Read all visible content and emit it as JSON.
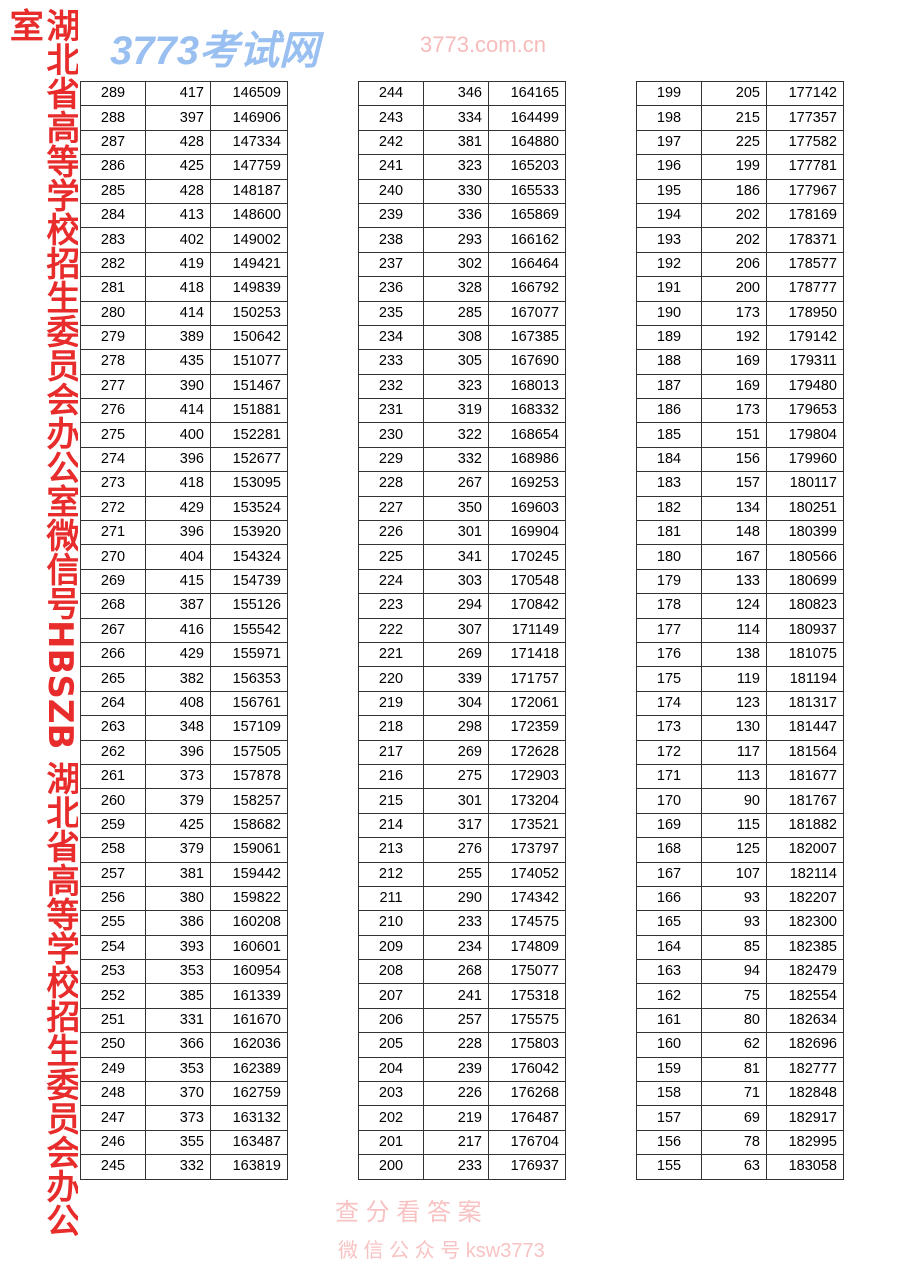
{
  "tables": [
    [
      [
        289,
        417,
        146509
      ],
      [
        288,
        397,
        146906
      ],
      [
        287,
        428,
        147334
      ],
      [
        286,
        425,
        147759
      ],
      [
        285,
        428,
        148187
      ],
      [
        284,
        413,
        148600
      ],
      [
        283,
        402,
        149002
      ],
      [
        282,
        419,
        149421
      ],
      [
        281,
        418,
        149839
      ],
      [
        280,
        414,
        150253
      ],
      [
        279,
        389,
        150642
      ],
      [
        278,
        435,
        151077
      ],
      [
        277,
        390,
        151467
      ],
      [
        276,
        414,
        151881
      ],
      [
        275,
        400,
        152281
      ],
      [
        274,
        396,
        152677
      ],
      [
        273,
        418,
        153095
      ],
      [
        272,
        429,
        153524
      ],
      [
        271,
        396,
        153920
      ],
      [
        270,
        404,
        154324
      ],
      [
        269,
        415,
        154739
      ],
      [
        268,
        387,
        155126
      ],
      [
        267,
        416,
        155542
      ],
      [
        266,
        429,
        155971
      ],
      [
        265,
        382,
        156353
      ],
      [
        264,
        408,
        156761
      ],
      [
        263,
        348,
        157109
      ],
      [
        262,
        396,
        157505
      ],
      [
        261,
        373,
        157878
      ],
      [
        260,
        379,
        158257
      ],
      [
        259,
        425,
        158682
      ],
      [
        258,
        379,
        159061
      ],
      [
        257,
        381,
        159442
      ],
      [
        256,
        380,
        159822
      ],
      [
        255,
        386,
        160208
      ],
      [
        254,
        393,
        160601
      ],
      [
        253,
        353,
        160954
      ],
      [
        252,
        385,
        161339
      ],
      [
        251,
        331,
        161670
      ],
      [
        250,
        366,
        162036
      ],
      [
        249,
        353,
        162389
      ],
      [
        248,
        370,
        162759
      ],
      [
        247,
        373,
        163132
      ],
      [
        246,
        355,
        163487
      ],
      [
        245,
        332,
        163819
      ]
    ],
    [
      [
        244,
        346,
        164165
      ],
      [
        243,
        334,
        164499
      ],
      [
        242,
        381,
        164880
      ],
      [
        241,
        323,
        165203
      ],
      [
        240,
        330,
        165533
      ],
      [
        239,
        336,
        165869
      ],
      [
        238,
        293,
        166162
      ],
      [
        237,
        302,
        166464
      ],
      [
        236,
        328,
        166792
      ],
      [
        235,
        285,
        167077
      ],
      [
        234,
        308,
        167385
      ],
      [
        233,
        305,
        167690
      ],
      [
        232,
        323,
        168013
      ],
      [
        231,
        319,
        168332
      ],
      [
        230,
        322,
        168654
      ],
      [
        229,
        332,
        168986
      ],
      [
        228,
        267,
        169253
      ],
      [
        227,
        350,
        169603
      ],
      [
        226,
        301,
        169904
      ],
      [
        225,
        341,
        170245
      ],
      [
        224,
        303,
        170548
      ],
      [
        223,
        294,
        170842
      ],
      [
        222,
        307,
        171149
      ],
      [
        221,
        269,
        171418
      ],
      [
        220,
        339,
        171757
      ],
      [
        219,
        304,
        172061
      ],
      [
        218,
        298,
        172359
      ],
      [
        217,
        269,
        172628
      ],
      [
        216,
        275,
        172903
      ],
      [
        215,
        301,
        173204
      ],
      [
        214,
        317,
        173521
      ],
      [
        213,
        276,
        173797
      ],
      [
        212,
        255,
        174052
      ],
      [
        211,
        290,
        174342
      ],
      [
        210,
        233,
        174575
      ],
      [
        209,
        234,
        174809
      ],
      [
        208,
        268,
        175077
      ],
      [
        207,
        241,
        175318
      ],
      [
        206,
        257,
        175575
      ],
      [
        205,
        228,
        175803
      ],
      [
        204,
        239,
        176042
      ],
      [
        203,
        226,
        176268
      ],
      [
        202,
        219,
        176487
      ],
      [
        201,
        217,
        176704
      ],
      [
        200,
        233,
        176937
      ]
    ],
    [
      [
        199,
        205,
        177142
      ],
      [
        198,
        215,
        177357
      ],
      [
        197,
        225,
        177582
      ],
      [
        196,
        199,
        177781
      ],
      [
        195,
        186,
        177967
      ],
      [
        194,
        202,
        178169
      ],
      [
        193,
        202,
        178371
      ],
      [
        192,
        206,
        178577
      ],
      [
        191,
        200,
        178777
      ],
      [
        190,
        173,
        178950
      ],
      [
        189,
        192,
        179142
      ],
      [
        188,
        169,
        179311
      ],
      [
        187,
        169,
        179480
      ],
      [
        186,
        173,
        179653
      ],
      [
        185,
        151,
        179804
      ],
      [
        184,
        156,
        179960
      ],
      [
        183,
        157,
        180117
      ],
      [
        182,
        134,
        180251
      ],
      [
        181,
        148,
        180399
      ],
      [
        180,
        167,
        180566
      ],
      [
        179,
        133,
        180699
      ],
      [
        178,
        124,
        180823
      ],
      [
        177,
        114,
        180937
      ],
      [
        176,
        138,
        181075
      ],
      [
        175,
        119,
        181194
      ],
      [
        174,
        123,
        181317
      ],
      [
        173,
        130,
        181447
      ],
      [
        172,
        117,
        181564
      ],
      [
        171,
        113,
        181677
      ],
      [
        170,
        90,
        181767
      ],
      [
        169,
        115,
        181882
      ],
      [
        168,
        125,
        182007
      ],
      [
        167,
        107,
        182114
      ],
      [
        166,
        93,
        182207
      ],
      [
        165,
        93,
        182300
      ],
      [
        164,
        85,
        182385
      ],
      [
        163,
        94,
        182479
      ],
      [
        162,
        75,
        182554
      ],
      [
        161,
        80,
        182634
      ],
      [
        160,
        62,
        182696
      ],
      [
        159,
        81,
        182777
      ],
      [
        158,
        71,
        182848
      ],
      [
        157,
        69,
        182917
      ],
      [
        156,
        78,
        182995
      ],
      [
        155,
        63,
        183058
      ]
    ]
  ],
  "watermarks": {
    "red": "湖北省高等学校招生委员会办公室微信号HBSZB 湖北省高等学校招生委员会办公室",
    "blue": "3773考试网",
    "site": "3773.com.cn",
    "sub": "查 分 看 答 案",
    "sub2": "微 信 公 众 号 ksw3773"
  },
  "colors": {
    "watermark_red": "#e61414",
    "watermark_blue": "#468ce6"
  }
}
